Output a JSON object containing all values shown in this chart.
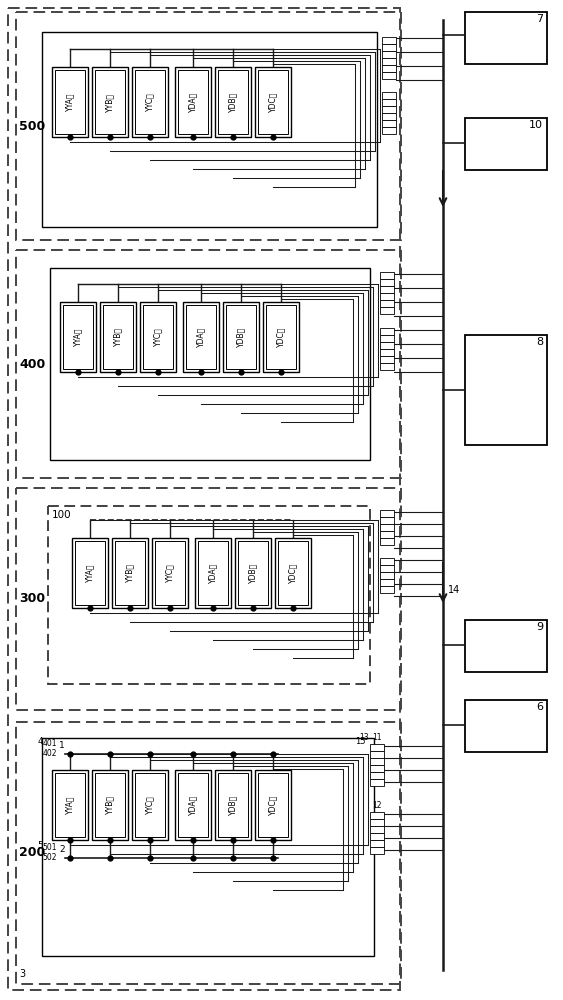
{
  "bg_color": "#ffffff",
  "lc": "#1a1a1a",
  "modules": [
    "YYA相",
    "YYB相",
    "YYC相",
    "YDA相",
    "YDB相",
    "YDC相"
  ],
  "zone_labels": [
    "500",
    "400",
    "300",
    "200"
  ],
  "right_box_labels": [
    "7",
    "10",
    "8",
    "9",
    "6"
  ]
}
